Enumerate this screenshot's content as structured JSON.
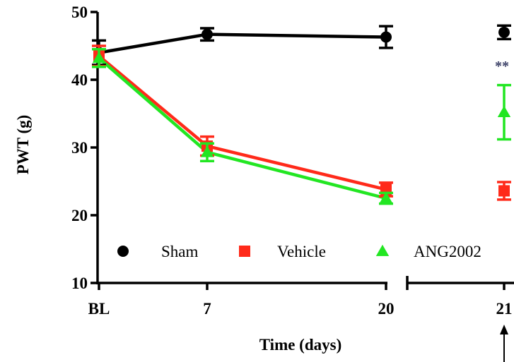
{
  "chart_data": {
    "type": "line",
    "xlabel": "Time (days)",
    "ylabel": "PWT (g)",
    "ylim": [
      10,
      50
    ],
    "y_ticks": [
      "10",
      "20",
      "30",
      "40",
      "50"
    ],
    "categories": [
      "BL",
      "7",
      "20",
      "21"
    ],
    "grid": false,
    "legend_placement": "bottom (inside plot)",
    "significance_mark": "**",
    "series": [
      {
        "name": "Sham",
        "color": "#000000",
        "marker": "circle",
        "values": [
          44.0,
          46.7,
          46.3,
          47.0
        ],
        "errors": [
          1.8,
          0.9,
          1.6,
          1.0
        ]
      },
      {
        "name": "Vehicle",
        "color": "#ff2a1a",
        "marker": "square",
        "values": [
          43.5,
          30.2,
          23.8,
          23.6
        ],
        "errors": [
          1.5,
          1.4,
          1.0,
          1.3
        ]
      },
      {
        "name": "ANG2002",
        "color": "#22e622",
        "marker": "triangle",
        "values": [
          43.2,
          29.3,
          22.5,
          35.2
        ],
        "errors": [
          1.3,
          1.3,
          0.8,
          4.0
        ]
      }
    ]
  }
}
